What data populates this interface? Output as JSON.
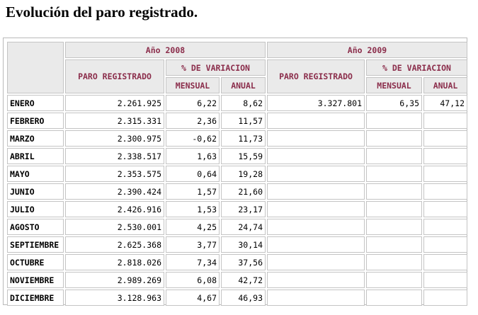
{
  "title": "Evolución del paro registrado.",
  "table": {
    "years": [
      "Año 2008",
      "Año 2009"
    ],
    "col_paro": "PARO REGISTRADO",
    "col_variacion": "% DE VARIACION",
    "col_mensual": "MENSUAL",
    "col_anual": "ANUAL",
    "rows": [
      {
        "month": "ENERO",
        "paro2008": "2.261.925",
        "mensual2008": "6,22",
        "anual2008": "8,62",
        "paro2009": "3.327.801",
        "mensual2009": "6,35",
        "anual2009": "47,12"
      },
      {
        "month": "FEBRERO",
        "paro2008": "2.315.331",
        "mensual2008": "2,36",
        "anual2008": "11,57"
      },
      {
        "month": "MARZO",
        "paro2008": "2.300.975",
        "mensual2008": "-0,62",
        "anual2008": "11,73"
      },
      {
        "month": "ABRIL",
        "paro2008": "2.338.517",
        "mensual2008": "1,63",
        "anual2008": "15,59"
      },
      {
        "month": "MAYO",
        "paro2008": "2.353.575",
        "mensual2008": "0,64",
        "anual2008": "19,28"
      },
      {
        "month": "JUNIO",
        "paro2008": "2.390.424",
        "mensual2008": "1,57",
        "anual2008": "21,60"
      },
      {
        "month": "JULIO",
        "paro2008": "2.426.916",
        "mensual2008": "1,53",
        "anual2008": "23,17"
      },
      {
        "month": "AGOSTO",
        "paro2008": "2.530.001",
        "mensual2008": "4,25",
        "anual2008": "24,74"
      },
      {
        "month": "SEPTIEMBRE",
        "paro2008": "2.625.368",
        "mensual2008": "3,77",
        "anual2008": "30,14"
      },
      {
        "month": "OCTUBRE",
        "paro2008": "2.818.026",
        "mensual2008": "7,34",
        "anual2008": "37,56"
      },
      {
        "month": "NOVIEMBRE",
        "paro2008": "2.989.269",
        "mensual2008": "6,08",
        "anual2008": "42,72"
      },
      {
        "month": "DICIEMBRE",
        "paro2008": "3.128.963",
        "mensual2008": "4,67",
        "anual2008": "46,93"
      }
    ]
  }
}
